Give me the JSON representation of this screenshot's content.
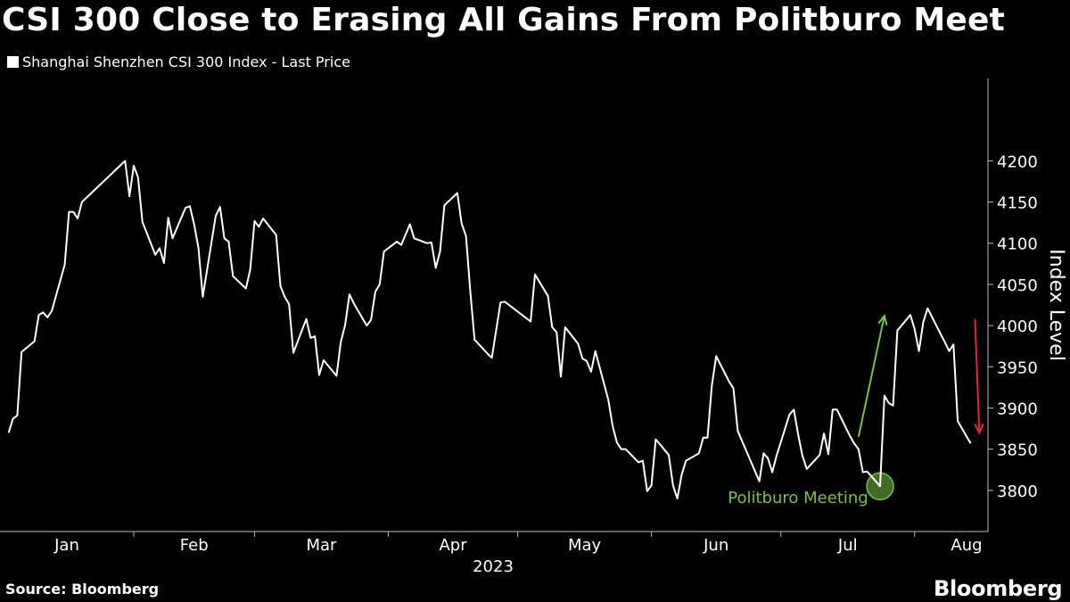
{
  "header": {
    "title": "CSI 300 Close to Erasing All Gains From Politburo Meet",
    "legend_label": "Shanghai Shenzhen CSI 300 Index - Last Price"
  },
  "footer": {
    "source": "Source: Bloomberg",
    "brand": "Bloomberg"
  },
  "chart_data": {
    "type": "line",
    "title": "CSI 300 Close to Erasing All Gains From Politburo Meet",
    "ylabel": "Index Level",
    "xlabel": "2023",
    "ylim": [
      3750,
      4300
    ],
    "yticks": [
      3800,
      3850,
      3900,
      3950,
      4000,
      4050,
      4100,
      4150,
      4200
    ],
    "x_months": [
      "Jan",
      "Feb",
      "Mar",
      "Apr",
      "May",
      "Jun",
      "Jul",
      "Aug"
    ],
    "year_label": "2023",
    "grid": false,
    "colors": {
      "line": "#ffffff",
      "up_arrow": "#7ac143",
      "down_arrow": "#e8243c",
      "annotation": "#7ac143"
    },
    "series": [
      {
        "name": "Shanghai Shenzhen CSI 300 Index - Last Price",
        "points": [
          [
            "2023-01-03",
            3870
          ],
          [
            "2023-01-04",
            3887
          ],
          [
            "2023-01-05",
            3891
          ],
          [
            "2023-01-06",
            3968
          ],
          [
            "2023-01-09",
            3981
          ],
          [
            "2023-01-10",
            4013
          ],
          [
            "2023-01-11",
            4016
          ],
          [
            "2023-01-12",
            4010
          ],
          [
            "2023-01-13",
            4018
          ],
          [
            "2023-01-16",
            4074
          ],
          [
            "2023-01-17",
            4138
          ],
          [
            "2023-01-18",
            4138
          ],
          [
            "2023-01-19",
            4130
          ],
          [
            "2023-01-20",
            4150
          ],
          [
            "2023-01-30",
            4200
          ],
          [
            "2023-01-31",
            4157
          ],
          [
            "2023-02-01",
            4194
          ],
          [
            "2023-02-02",
            4180
          ],
          [
            "2023-02-03",
            4126
          ],
          [
            "2023-02-06",
            4086
          ],
          [
            "2023-02-07",
            4094
          ],
          [
            "2023-02-08",
            4076
          ],
          [
            "2023-02-09",
            4131
          ],
          [
            "2023-02-10",
            4106
          ],
          [
            "2023-02-13",
            4143
          ],
          [
            "2023-02-14",
            4145
          ],
          [
            "2023-02-15",
            4123
          ],
          [
            "2023-02-16",
            4094
          ],
          [
            "2023-02-17",
            4035
          ],
          [
            "2023-02-20",
            4133
          ],
          [
            "2023-02-21",
            4144
          ],
          [
            "2023-02-22",
            4106
          ],
          [
            "2023-02-23",
            4102
          ],
          [
            "2023-02-24",
            4060
          ],
          [
            "2023-02-27",
            4045
          ],
          [
            "2023-02-28",
            4068
          ],
          [
            "2023-03-01",
            4127
          ],
          [
            "2023-03-02",
            4120
          ],
          [
            "2023-03-03",
            4130
          ],
          [
            "2023-03-06",
            4110
          ],
          [
            "2023-03-07",
            4048
          ],
          [
            "2023-03-08",
            4035
          ],
          [
            "2023-03-09",
            4026
          ],
          [
            "2023-03-10",
            3967
          ],
          [
            "2023-03-13",
            4008
          ],
          [
            "2023-03-14",
            3985
          ],
          [
            "2023-03-15",
            3987
          ],
          [
            "2023-03-16",
            3940
          ],
          [
            "2023-03-17",
            3958
          ],
          [
            "2023-03-20",
            3939
          ],
          [
            "2023-03-21",
            3980
          ],
          [
            "2023-03-22",
            4001
          ],
          [
            "2023-03-23",
            4038
          ],
          [
            "2023-03-24",
            4027
          ],
          [
            "2023-03-27",
            4000
          ],
          [
            "2023-03-28",
            4007
          ],
          [
            "2023-03-29",
            4041
          ],
          [
            "2023-03-30",
            4050
          ],
          [
            "2023-03-31",
            4090
          ],
          [
            "2023-04-03",
            4102
          ],
          [
            "2023-04-04",
            4098
          ],
          [
            "2023-04-06",
            4123
          ],
          [
            "2023-04-07",
            4106
          ],
          [
            "2023-04-10",
            4100
          ],
          [
            "2023-04-11",
            4101
          ],
          [
            "2023-04-12",
            4070
          ],
          [
            "2023-04-13",
            4090
          ],
          [
            "2023-04-14",
            4146
          ],
          [
            "2023-04-17",
            4161
          ],
          [
            "2023-04-18",
            4124
          ],
          [
            "2023-04-19",
            4109
          ],
          [
            "2023-04-20",
            4042
          ],
          [
            "2023-04-21",
            3983
          ],
          [
            "2023-04-24",
            3966
          ],
          [
            "2023-04-25",
            3961
          ],
          [
            "2023-04-26",
            3994
          ],
          [
            "2023-04-27",
            4028
          ],
          [
            "2023-04-28",
            4029
          ],
          [
            "2023-05-04",
            4005
          ],
          [
            "2023-05-05",
            4062
          ],
          [
            "2023-05-08",
            4036
          ],
          [
            "2023-05-09",
            3998
          ],
          [
            "2023-05-10",
            3992
          ],
          [
            "2023-05-11",
            3938
          ],
          [
            "2023-05-12",
            3998
          ],
          [
            "2023-05-15",
            3978
          ],
          [
            "2023-05-16",
            3960
          ],
          [
            "2023-05-17",
            3957
          ],
          [
            "2023-05-18",
            3944
          ],
          [
            "2023-05-19",
            3969
          ],
          [
            "2023-05-22",
            3910
          ],
          [
            "2023-05-23",
            3878
          ],
          [
            "2023-05-24",
            3858
          ],
          [
            "2023-05-25",
            3850
          ],
          [
            "2023-05-26",
            3850
          ],
          [
            "2023-05-29",
            3834
          ],
          [
            "2023-05-30",
            3836
          ],
          [
            "2023-05-31",
            3799
          ],
          [
            "2023-06-01",
            3806
          ],
          [
            "2023-06-02",
            3862
          ],
          [
            "2023-06-05",
            3843
          ],
          [
            "2023-06-06",
            3806
          ],
          [
            "2023-06-07",
            3790
          ],
          [
            "2023-06-08",
            3819
          ],
          [
            "2023-06-09",
            3836
          ],
          [
            "2023-06-12",
            3845
          ],
          [
            "2023-06-13",
            3864
          ],
          [
            "2023-06-14",
            3864
          ],
          [
            "2023-06-15",
            3927
          ],
          [
            "2023-06-16",
            3963
          ],
          [
            "2023-06-19",
            3932
          ],
          [
            "2023-06-20",
            3924
          ],
          [
            "2023-06-21",
            3872
          ],
          [
            "2023-06-26",
            3811
          ],
          [
            "2023-06-27",
            3845
          ],
          [
            "2023-06-28",
            3839
          ],
          [
            "2023-06-29",
            3822
          ],
          [
            "2023-06-30",
            3842
          ],
          [
            "2023-07-03",
            3892
          ],
          [
            "2023-07-04",
            3898
          ],
          [
            "2023-07-05",
            3868
          ],
          [
            "2023-07-06",
            3842
          ],
          [
            "2023-07-07",
            3826
          ],
          [
            "2023-07-10",
            3843
          ],
          [
            "2023-07-11",
            3869
          ],
          [
            "2023-07-12",
            3844
          ],
          [
            "2023-07-13",
            3898
          ],
          [
            "2023-07-14",
            3898
          ],
          [
            "2023-07-17",
            3866
          ],
          [
            "2023-07-18",
            3857
          ],
          [
            "2023-07-19",
            3850
          ],
          [
            "2023-07-20",
            3822
          ],
          [
            "2023-07-21",
            3823
          ],
          [
            "2023-07-24",
            3805
          ],
          [
            "2023-07-25",
            3915
          ],
          [
            "2023-07-26",
            3906
          ],
          [
            "2023-07-27",
            3903
          ],
          [
            "2023-07-28",
            3994
          ],
          [
            "2023-07-31",
            4013
          ],
          [
            "2023-08-01",
            3996
          ],
          [
            "2023-08-02",
            3969
          ],
          [
            "2023-08-03",
            4004
          ],
          [
            "2023-08-04",
            4021
          ],
          [
            "2023-08-07",
            3990
          ],
          [
            "2023-08-08",
            3980
          ],
          [
            "2023-08-09",
            3969
          ],
          [
            "2023-08-10",
            3977
          ],
          [
            "2023-08-11",
            3884
          ],
          [
            "2023-08-14",
            3857
          ]
        ]
      }
    ],
    "annotations": {
      "event_label": "Politburo Meeting",
      "event_date": "2023-07-24",
      "event_value": 3805,
      "up_arrow": {
        "from": [
          "2023-07-19",
          3865
        ],
        "to": [
          "2023-07-25",
          4012
        ]
      },
      "down_arrow": {
        "from": [
          "2023-08-15",
          4008
        ],
        "to": [
          "2023-08-16",
          3870
        ]
      }
    }
  }
}
